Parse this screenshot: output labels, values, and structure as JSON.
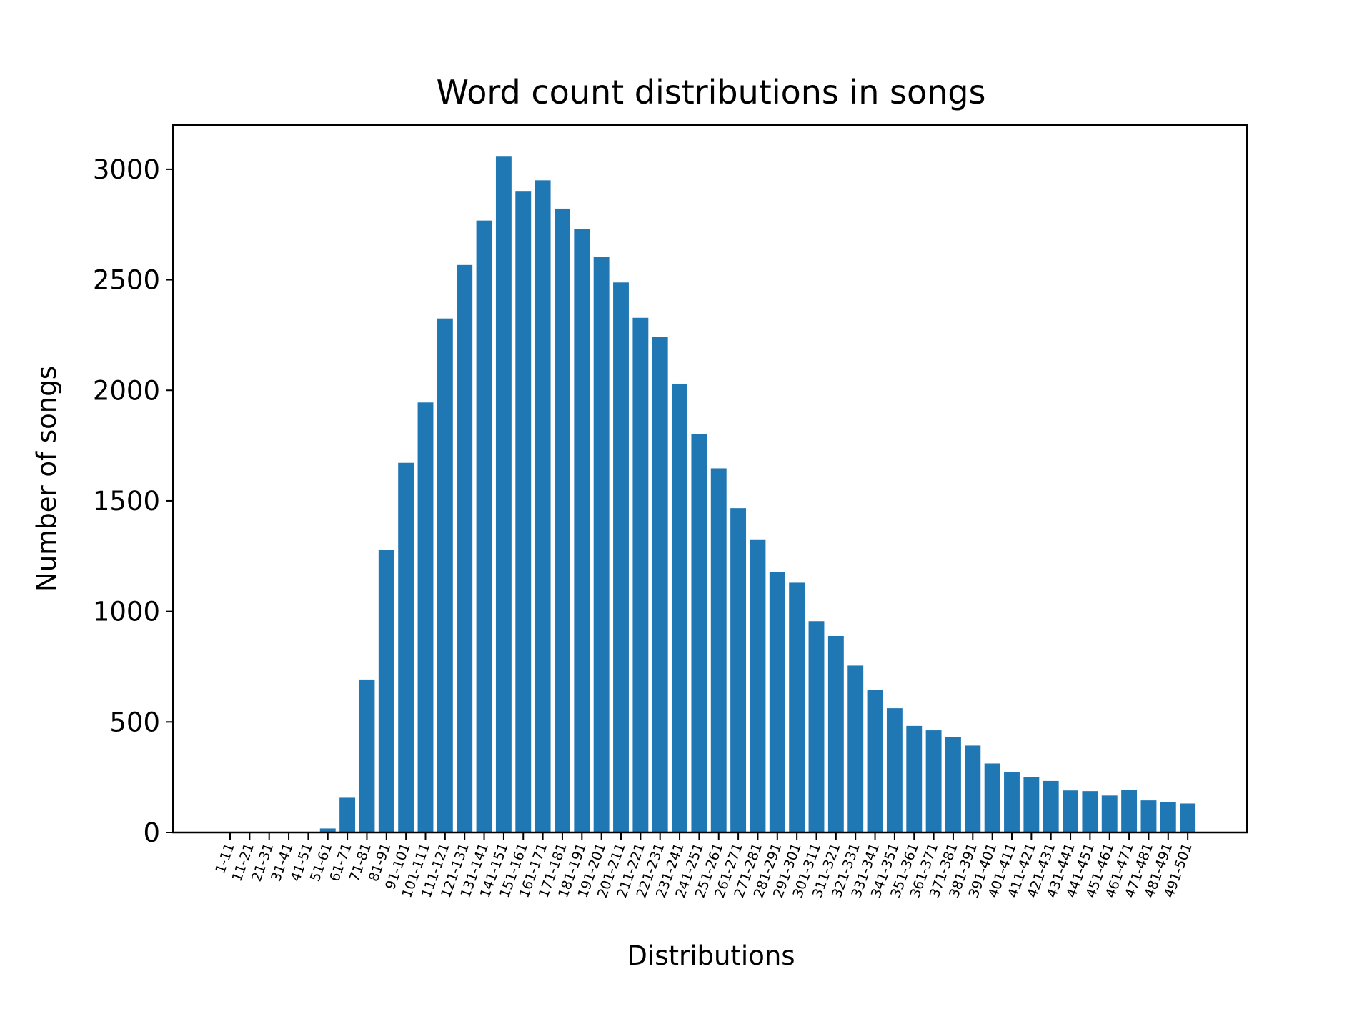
{
  "chart_data": {
    "type": "bar",
    "title": "Word count distributions in songs",
    "xlabel": "Distributions",
    "ylabel": "Number of songs",
    "ylim": [
      0,
      3200
    ],
    "yticks": [
      0,
      500,
      1000,
      1500,
      2000,
      2500,
      3000
    ],
    "grid": false,
    "bar_color": "#1f77b4",
    "categories": [
      "1-11",
      "11-21",
      "21-31",
      "31-41",
      "41-51",
      "51-61",
      "61-71",
      "71-81",
      "81-91",
      "91-101",
      "101-111",
      "111-121",
      "121-131",
      "131-141",
      "141-151",
      "151-161",
      "161-171",
      "171-181",
      "181-191",
      "191-201",
      "201-211",
      "211-221",
      "221-231",
      "231-241",
      "241-251",
      "251-261",
      "261-271",
      "271-281",
      "281-291",
      "291-301",
      "301-311",
      "311-321",
      "321-331",
      "331-341",
      "341-351",
      "351-361",
      "361-371",
      "371-381",
      "381-391",
      "391-401",
      "401-411",
      "411-421",
      "421-431",
      "431-441",
      "441-451",
      "451-461",
      "461-471",
      "471-481",
      "481-491",
      "491-501"
    ],
    "values": [
      0,
      0,
      0,
      0,
      1,
      18,
      157,
      692,
      1277,
      1672,
      1945,
      2325,
      2567,
      2768,
      3057,
      2902,
      2950,
      2822,
      2731,
      2605,
      2488,
      2328,
      2243,
      2030,
      1803,
      1647,
      1467,
      1326,
      1179,
      1130,
      956,
      889,
      755,
      645,
      562,
      482,
      462,
      432,
      393,
      312,
      272,
      250,
      233,
      190,
      187,
      167,
      192,
      145,
      138,
      131
    ]
  }
}
